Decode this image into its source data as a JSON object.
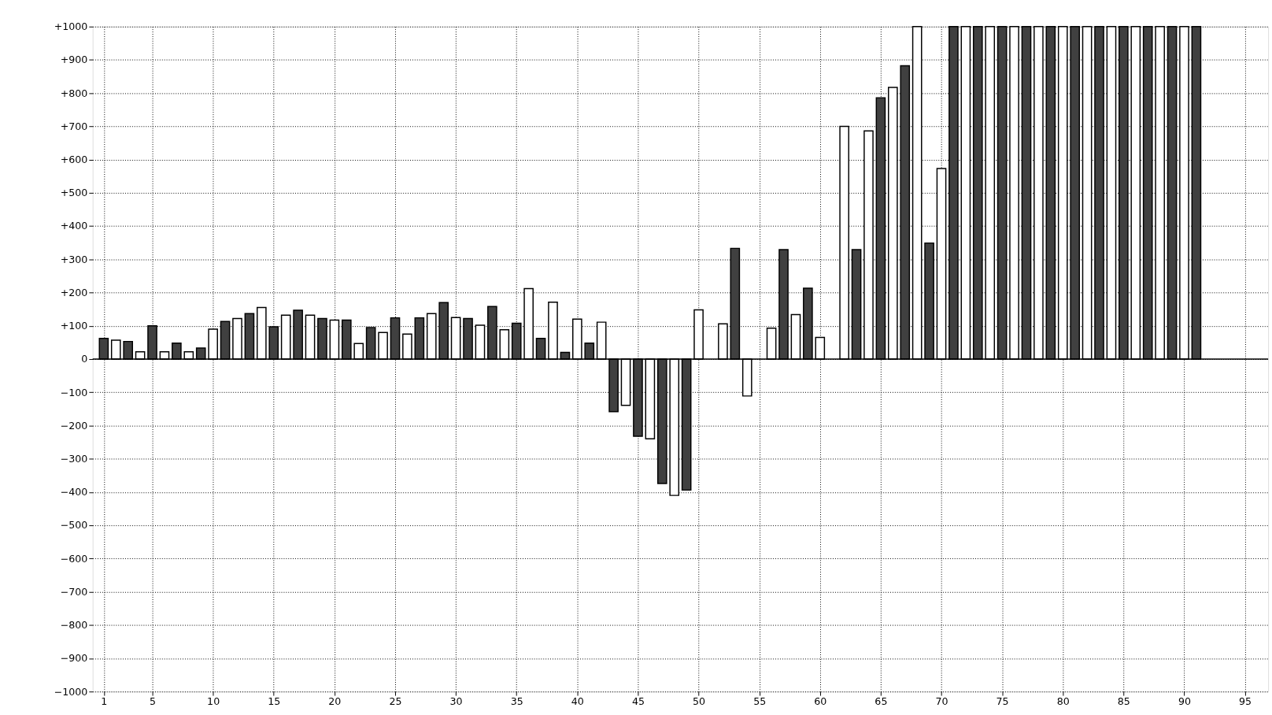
{
  "chart_data": {
    "type": "bar",
    "x": [
      1,
      2,
      3,
      4,
      5,
      6,
      7,
      8,
      9,
      10,
      11,
      12,
      13,
      14,
      15,
      16,
      17,
      18,
      19,
      20,
      21,
      22,
      23,
      24,
      25,
      26,
      27,
      28,
      29,
      30,
      31,
      32,
      33,
      34,
      35,
      36,
      37,
      38,
      39,
      40,
      41,
      42,
      43,
      44,
      45,
      46,
      47,
      48,
      49,
      50,
      52,
      53,
      54,
      56,
      57,
      58,
      59,
      60,
      62,
      63,
      64,
      65,
      66,
      67,
      68,
      69,
      70,
      71,
      72,
      73,
      74,
      75,
      76,
      77,
      78,
      79,
      80,
      81,
      82,
      83,
      84,
      85,
      86,
      87,
      88,
      89,
      90,
      91
    ],
    "values": [
      62,
      57,
      53,
      22,
      100,
      22,
      48,
      22,
      33,
      90,
      113,
      122,
      137,
      155,
      97,
      132,
      147,
      132,
      122,
      117,
      117,
      47,
      95,
      80,
      124,
      75,
      124,
      137,
      170,
      125,
      122,
      102,
      158,
      88,
      108,
      212,
      62,
      171,
      20,
      120,
      48,
      111,
      -158,
      -139,
      -232,
      -240,
      -374,
      -410,
      -394,
      148,
      106,
      333,
      -111,
      93,
      329,
      134,
      213,
      65,
      700,
      329,
      686,
      786,
      817,
      882,
      1000,
      349,
      573,
      1000,
      1000,
      1000,
      1000,
      1000,
      1000,
      1000,
      1000,
      1000,
      1000,
      1000,
      1000,
      1000,
      1000,
      1000,
      1000,
      1000,
      1000,
      1000,
      1000,
      1000
    ],
    "colors": [
      "#404040",
      "#ffffff",
      "#404040",
      "#ffffff",
      "#404040",
      "#ffffff",
      "#404040",
      "#ffffff",
      "#404040",
      "#ffffff",
      "#404040",
      "#ffffff",
      "#404040",
      "#ffffff",
      "#404040",
      "#ffffff",
      "#404040",
      "#ffffff",
      "#404040",
      "#ffffff",
      "#404040",
      "#ffffff",
      "#404040",
      "#ffffff",
      "#404040",
      "#ffffff",
      "#404040",
      "#ffffff",
      "#404040",
      "#ffffff",
      "#404040",
      "#ffffff",
      "#404040",
      "#ffffff",
      "#404040",
      "#ffffff",
      "#404040",
      "#ffffff",
      "#404040",
      "#ffffff",
      "#404040",
      "#ffffff",
      "#404040",
      "#ffffff",
      "#404040",
      "#ffffff",
      "#404040",
      "#ffffff",
      "#404040",
      "#ffffff",
      "#ffffff",
      "#404040",
      "#ffffff",
      "#ffffff",
      "#404040",
      "#ffffff",
      "#404040",
      "#ffffff",
      "#ffffff",
      "#404040",
      "#ffffff",
      "#404040",
      "#ffffff",
      "#404040",
      "#ffffff",
      "#404040",
      "#ffffff",
      "#404040",
      "#ffffff",
      "#404040",
      "#ffffff",
      "#404040",
      "#ffffff",
      "#404040",
      "#ffffff",
      "#404040",
      "#ffffff",
      "#404040",
      "#ffffff",
      "#404040",
      "#ffffff",
      "#404040",
      "#ffffff",
      "#404040",
      "#ffffff",
      "#404040",
      "#ffffff",
      "#404040"
    ],
    "xlim": [
      0.4,
      96.6
    ],
    "xticks": [
      1,
      5,
      10,
      15,
      20,
      25,
      30,
      35,
      40,
      45,
      50,
      55,
      60,
      65,
      70,
      75,
      80,
      85,
      90,
      95
    ],
    "ylim": [
      -1000,
      1000
    ],
    "yticks": [
      -1000,
      -900,
      -800,
      -700,
      -600,
      -500,
      -400,
      -300,
      -200,
      -100,
      0,
      {
        "value": 100,
        "label": "+100"
      },
      {
        "value": 200,
        "label": "+200"
      },
      {
        "value": 300,
        "label": "+300"
      },
      {
        "value": 400,
        "label": "+400"
      },
      {
        "value": 500,
        "label": "+500"
      },
      {
        "value": 600,
        "label": "+600"
      },
      {
        "value": 700,
        "label": "+700"
      },
      {
        "value": 800,
        "label": "+800"
      },
      {
        "value": 900,
        "label": "+900"
      },
      {
        "value": 1000,
        "label": "+1000"
      }
    ],
    "grid": true,
    "ref_lines": [
      {
        "axis": "y",
        "value": 0,
        "color": "#000000"
      }
    ]
  }
}
